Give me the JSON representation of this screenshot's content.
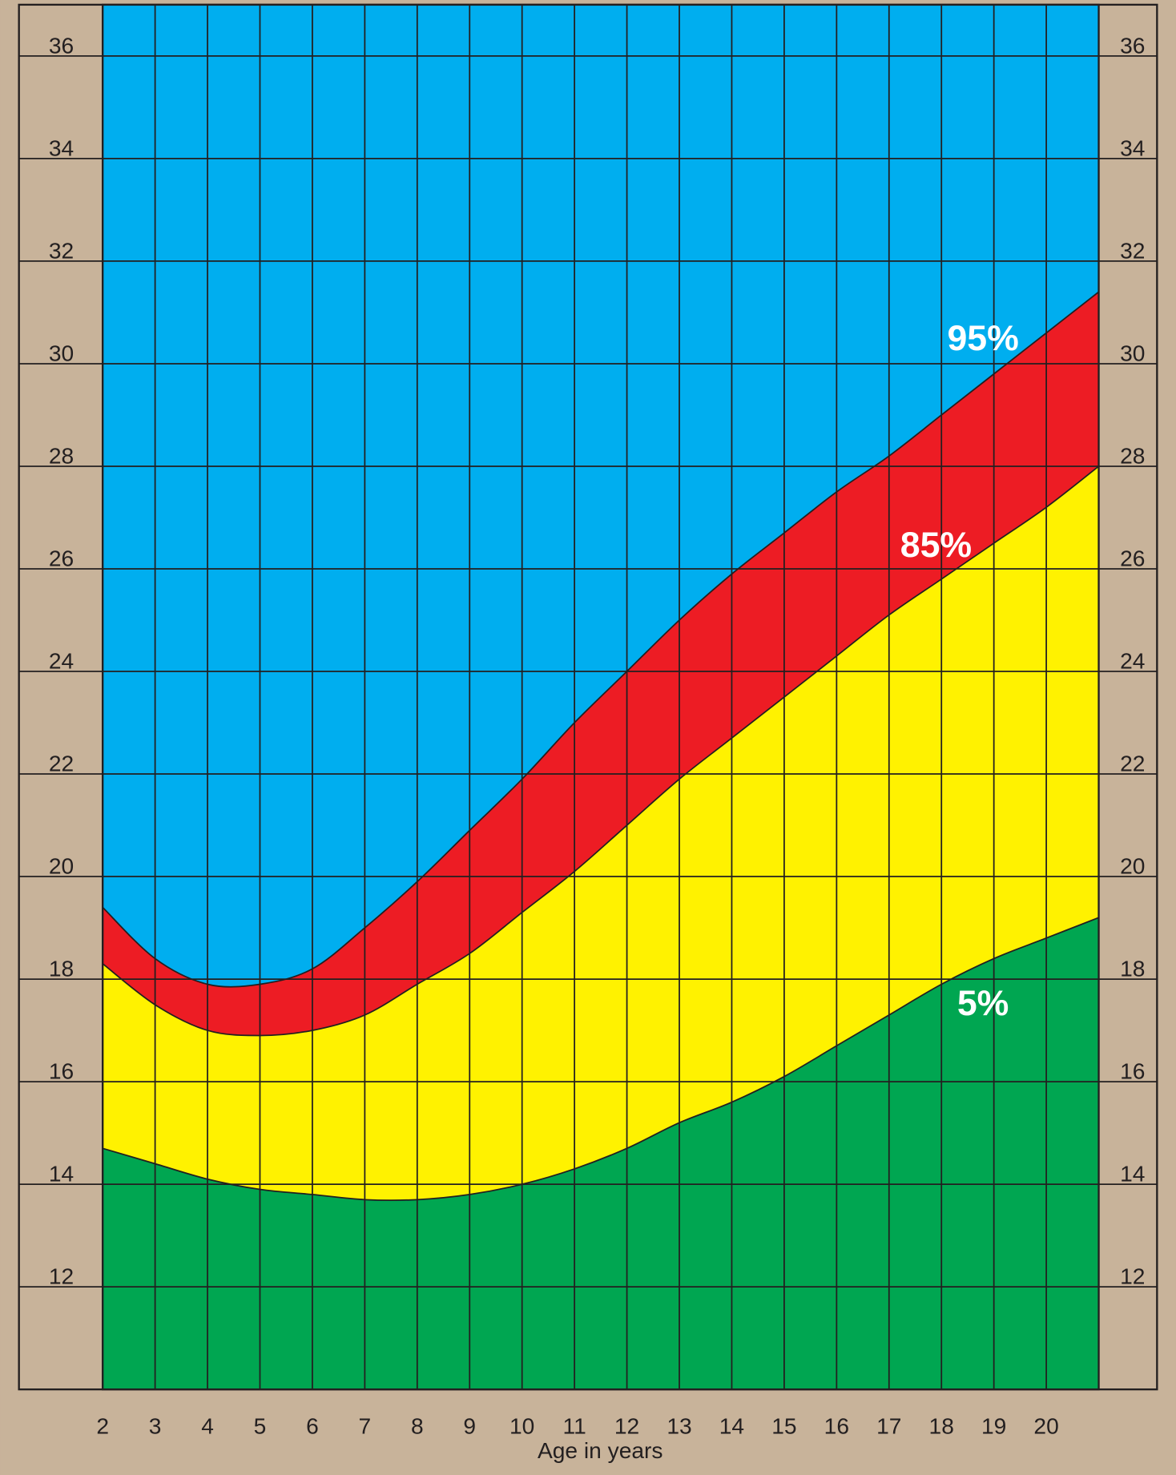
{
  "chart_data": {
    "type": "area",
    "x_label": "Age in years",
    "x": [
      2,
      3,
      4,
      5,
      6,
      7,
      8,
      9,
      10,
      11,
      12,
      13,
      14,
      15,
      16,
      17,
      18,
      19,
      20,
      21
    ],
    "xlim": [
      2,
      21
    ],
    "xticks": [
      2,
      3,
      4,
      5,
      6,
      7,
      8,
      9,
      10,
      11,
      12,
      13,
      14,
      15,
      16,
      17,
      18,
      19,
      20
    ],
    "ylim": [
      10,
      37
    ],
    "yticks": [
      12,
      14,
      16,
      18,
      20,
      22,
      24,
      26,
      28,
      30,
      32,
      34,
      36
    ],
    "grid": true,
    "fill_above": "#00aeef",
    "background_color": "#c8b39a",
    "series": [
      {
        "name": "95%",
        "color": "#ed1c24",
        "values": [
          19.4,
          18.4,
          17.9,
          17.9,
          18.2,
          19.0,
          19.9,
          20.9,
          21.9,
          23.0,
          24.0,
          25.0,
          25.9,
          26.7,
          27.5,
          28.2,
          29.0,
          29.8,
          30.6,
          31.4
        ]
      },
      {
        "name": "85%",
        "color": "#fff200",
        "values": [
          18.3,
          17.5,
          17.0,
          16.9,
          17.0,
          17.3,
          17.9,
          18.5,
          19.3,
          20.1,
          21.0,
          21.9,
          22.7,
          23.5,
          24.3,
          25.1,
          25.8,
          26.5,
          27.2,
          28.0
        ]
      },
      {
        "name": "5%",
        "color": "#00a651",
        "values": [
          14.7,
          14.4,
          14.1,
          13.9,
          13.8,
          13.7,
          13.7,
          13.8,
          14.0,
          14.3,
          14.7,
          15.2,
          15.6,
          16.1,
          16.7,
          17.3,
          17.9,
          18.4,
          18.8,
          19.2
        ]
      }
    ]
  }
}
